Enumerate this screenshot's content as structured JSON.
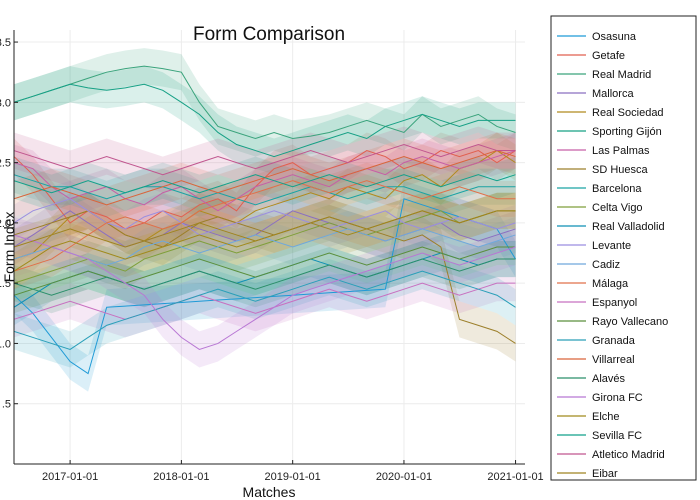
{
  "chart_data": {
    "type": "line",
    "title": "Form Comparison",
    "xlabel": "Matches",
    "ylabel": "Form Index",
    "x_ticks": [
      "2017-01-01",
      "2018-01-01",
      "2019-01-01",
      "2020-01-01",
      "2021-01-01"
    ],
    "x_range": [
      "2016-07-01",
      "2021-02-01"
    ],
    "y_ticks": [
      ".5",
      "1.0",
      "1.5",
      "2.0",
      "2.5",
      "3.0",
      "3.5"
    ],
    "y_tick_values": [
      0.5,
      1.0,
      1.5,
      2.0,
      2.5,
      3.0,
      3.5
    ],
    "ylim": [
      0.0,
      3.6
    ],
    "grid": true,
    "legend_position": "outside-right",
    "band_type": "shaded confidence band",
    "x_dates": [
      "2016-07-01",
      "2016-09-01",
      "2016-11-01",
      "2017-01-01",
      "2017-03-01",
      "2017-05-01",
      "2017-07-01",
      "2017-09-01",
      "2017-11-01",
      "2018-01-01",
      "2018-03-01",
      "2018-05-01",
      "2018-07-01",
      "2018-09-01",
      "2018-11-01",
      "2019-01-01",
      "2019-03-01",
      "2019-05-01",
      "2019-07-01",
      "2019-09-01",
      "2019-11-01",
      "2020-01-01",
      "2020-03-01",
      "2020-05-01",
      "2020-07-01",
      "2020-09-01",
      "2020-11-01",
      "2021-01-01"
    ],
    "series": [
      {
        "name": "Osasuna",
        "color": "#1f9ad6",
        "values": [
          1.4,
          1.25,
          1.05,
          0.85,
          0.75,
          1.3,
          1.31,
          1.32,
          1.33,
          1.34,
          1.35,
          1.36,
          1.37,
          1.38,
          1.39,
          1.4,
          1.41,
          1.42,
          1.43,
          1.44,
          1.45,
          2.2,
          2.15,
          2.1,
          2.05,
          2.0,
          1.95,
          1.7
        ]
      },
      {
        "name": "Getafe",
        "color": "#e15f4f",
        "values": [
          2.55,
          2.4,
          2.2,
          2.0,
          2.1,
          2.05,
          1.95,
          2.0,
          2.1,
          2.05,
          2.15,
          2.2,
          2.1,
          2.3,
          2.45,
          2.5,
          2.4,
          2.45,
          2.5,
          2.6,
          2.55,
          2.45,
          2.5,
          2.6,
          2.55,
          2.6,
          2.5,
          2.6
        ]
      },
      {
        "name": "Real Madrid",
        "color": "#3aa37c",
        "values": [
          3.0,
          3.05,
          3.1,
          3.15,
          3.2,
          3.25,
          3.28,
          3.3,
          3.28,
          3.25,
          3.0,
          2.8,
          2.75,
          2.7,
          2.75,
          2.7,
          2.72,
          2.75,
          2.8,
          2.85,
          2.8,
          2.75,
          2.9,
          2.8,
          2.85,
          2.9,
          2.8,
          2.75
        ]
      },
      {
        "name": "Mallorca",
        "color": "#8b6fc1",
        "values": [
          1.8,
          1.9,
          2.0,
          2.1,
          2.0,
          1.9,
          1.8,
          1.85,
          1.9,
          2.0,
          1.95,
          1.9,
          1.85,
          1.9,
          2.0,
          2.1,
          2.05,
          2.0,
          1.95,
          1.9,
          1.85,
          1.9,
          1.95,
          2.0,
          1.9,
          1.85,
          1.9,
          1.95
        ]
      },
      {
        "name": "Real Sociedad",
        "color": "#b08a1d",
        "values": [
          1.7,
          1.75,
          1.9,
          2.05,
          2.1,
          2.0,
          1.9,
          1.85,
          1.95,
          2.0,
          2.1,
          2.05,
          2.0,
          2.1,
          2.15,
          2.2,
          2.25,
          2.2,
          2.3,
          2.25,
          2.2,
          2.35,
          2.4,
          2.3,
          2.45,
          2.5,
          2.6,
          2.5
        ]
      },
      {
        "name": "Sporting Gijón",
        "color": "#16a085",
        "values": [
          3.0,
          3.05,
          3.1,
          3.15,
          3.12,
          3.1,
          3.12,
          3.15,
          3.1,
          3.0,
          2.9,
          2.75,
          2.65,
          2.6,
          2.55,
          2.6,
          2.65,
          2.7,
          2.75,
          2.7,
          2.8,
          2.85,
          2.9,
          2.85,
          2.8,
          2.85,
          2.85,
          2.85
        ]
      },
      {
        "name": "Las Palmas",
        "color": "#c65fa6",
        "values": [
          2.5,
          2.45,
          2.3,
          2.2,
          2.25,
          2.3,
          2.2,
          2.15,
          2.25,
          2.3,
          2.2,
          2.1,
          2.2,
          2.3,
          2.35,
          2.4,
          2.35,
          2.3,
          2.4,
          2.45,
          2.4,
          2.5,
          2.55,
          2.5,
          2.45,
          2.5,
          2.55,
          2.6
        ]
      },
      {
        "name": "SD Huesca",
        "color": "#9c7f2a",
        "values": [
          1.9,
          1.95,
          2.0,
          2.05,
          2.1,
          2.0,
          1.9,
          1.85,
          1.8,
          1.9,
          2.0,
          2.05,
          2.0,
          1.95,
          1.9,
          1.95,
          2.0,
          2.05,
          2.0,
          1.95,
          1.9,
          1.85,
          1.9,
          1.8,
          1.2,
          1.15,
          1.1,
          1.0
        ]
      },
      {
        "name": "Barcelona",
        "color": "#1aa3a3",
        "values": [
          2.4,
          2.35,
          2.3,
          2.3,
          2.25,
          2.2,
          2.25,
          2.3,
          2.3,
          2.25,
          2.2,
          2.25,
          2.2,
          2.15,
          2.2,
          2.25,
          2.3,
          2.25,
          2.2,
          2.25,
          2.3,
          2.3,
          2.25,
          2.2,
          2.25,
          2.3,
          2.3,
          2.3
        ]
      },
      {
        "name": "Celta Vigo",
        "color": "#7f9f3a",
        "values": [
          1.5,
          1.55,
          1.6,
          1.65,
          1.7,
          1.65,
          1.6,
          1.7,
          1.75,
          1.8,
          1.85,
          1.8,
          1.75,
          1.8,
          1.85,
          1.9,
          1.95,
          2.0,
          1.95,
          1.9,
          1.95,
          2.0,
          2.05,
          2.1,
          2.0,
          2.05,
          2.1,
          2.1
        ]
      },
      {
        "name": "Real Valladolid",
        "color": "#0f8fb5",
        "values": [
          1.3,
          1.4,
          1.5,
          1.55,
          1.6,
          1.55,
          1.5,
          1.45,
          1.5,
          1.55,
          1.6,
          1.55,
          1.5,
          1.55,
          1.6,
          1.65,
          1.7,
          1.65,
          1.6,
          1.55,
          1.6,
          1.65,
          1.7,
          1.75,
          1.7,
          1.65,
          1.7,
          1.7
        ]
      },
      {
        "name": "Levante",
        "color": "#9b8ee0",
        "values": [
          2.0,
          2.1,
          2.15,
          2.2,
          2.1,
          2.0,
          1.95,
          2.05,
          2.1,
          2.0,
          1.9,
          1.95,
          2.0,
          2.05,
          2.1,
          2.05,
          2.0,
          1.95,
          2.0,
          2.05,
          2.1,
          2.0,
          1.95,
          2.0,
          2.05,
          2.0,
          1.95,
          2.0
        ]
      },
      {
        "name": "Cadiz",
        "color": "#6fa8dc",
        "values": [
          1.7,
          1.75,
          1.8,
          1.75,
          1.7,
          1.65,
          1.7,
          1.8,
          1.85,
          1.8,
          1.75,
          1.8,
          1.85,
          1.9,
          1.85,
          1.8,
          1.85,
          1.9,
          1.95,
          1.9,
          1.85,
          1.9,
          1.95,
          1.9,
          1.85,
          1.8,
          1.85,
          1.9
        ]
      },
      {
        "name": "Málaga",
        "color": "#e0704a",
        "values": [
          1.6,
          1.65,
          1.7,
          1.8,
          1.9,
          2.0,
          2.05,
          2.0,
          1.95,
          2.0,
          2.1,
          2.15,
          2.2,
          2.25,
          2.3,
          2.35,
          2.3,
          2.25,
          2.3,
          2.35,
          2.3,
          2.25,
          2.2,
          2.25,
          2.3,
          2.25,
          2.2,
          2.2
        ]
      },
      {
        "name": "Espanyol",
        "color": "#c870c0",
        "values": [
          1.2,
          1.25,
          1.3,
          1.35,
          1.3,
          1.25,
          1.2,
          1.25,
          1.3,
          1.35,
          1.4,
          1.35,
          1.3,
          1.25,
          1.3,
          1.35,
          1.4,
          1.45,
          1.4,
          1.35,
          1.4,
          1.45,
          1.5,
          1.45,
          1.4,
          1.45,
          1.5,
          1.5
        ]
      },
      {
        "name": "Rayo Vallecano",
        "color": "#5a8f3c",
        "values": [
          1.4,
          1.45,
          1.5,
          1.55,
          1.6,
          1.55,
          1.5,
          1.55,
          1.6,
          1.65,
          1.7,
          1.65,
          1.6,
          1.55,
          1.6,
          1.65,
          1.7,
          1.75,
          1.7,
          1.65,
          1.7,
          1.75,
          1.8,
          1.75,
          1.7,
          1.75,
          1.8,
          1.8
        ]
      },
      {
        "name": "Granada",
        "color": "#2a9fb8",
        "values": [
          1.1,
          1.05,
          1.0,
          0.95,
          1.05,
          1.15,
          1.2,
          1.25,
          1.3,
          1.35,
          1.4,
          1.45,
          1.4,
          1.35,
          1.4,
          1.45,
          1.5,
          1.55,
          1.5,
          1.45,
          1.5,
          1.55,
          1.6,
          1.55,
          1.5,
          1.45,
          1.4,
          1.3
        ]
      },
      {
        "name": "Villarreal",
        "color": "#d9653b",
        "values": [
          2.2,
          2.25,
          2.3,
          2.25,
          2.2,
          2.15,
          2.2,
          2.25,
          2.3,
          2.35,
          2.3,
          2.25,
          2.3,
          2.35,
          2.4,
          2.45,
          2.4,
          2.35,
          2.4,
          2.45,
          2.5,
          2.55,
          2.5,
          2.45,
          2.5,
          2.55,
          2.6,
          2.55
        ]
      },
      {
        "name": "Alavés",
        "color": "#2b8f6a",
        "values": [
          1.5,
          1.45,
          1.4,
          1.45,
          1.5,
          1.55,
          1.5,
          1.45,
          1.5,
          1.55,
          1.6,
          1.55,
          1.5,
          1.45,
          1.5,
          1.55,
          1.6,
          1.65,
          1.6,
          1.55,
          1.6,
          1.65,
          1.7,
          1.65,
          1.6,
          1.65,
          1.7,
          1.7
        ]
      },
      {
        "name": "Girona FC",
        "color": "#b877d4",
        "values": [
          1.9,
          1.85,
          1.8,
          1.75,
          1.7,
          1.6,
          1.5,
          1.4,
          1.2,
          1.05,
          0.95,
          1.0,
          1.1,
          1.2,
          1.3,
          1.4,
          1.45,
          1.5,
          1.55,
          1.6,
          1.65,
          1.7,
          1.75,
          1.7,
          1.65,
          1.7,
          1.75,
          1.8
        ]
      },
      {
        "name": "Elche",
        "color": "#a08a1c",
        "values": [
          1.6,
          1.7,
          1.8,
          1.85,
          1.8,
          1.75,
          1.7,
          1.75,
          1.8,
          1.85,
          1.9,
          1.85,
          1.8,
          1.85,
          1.9,
          1.95,
          2.0,
          1.95,
          1.9,
          1.95,
          2.0,
          2.05,
          2.1,
          2.05,
          2.0,
          2.05,
          2.1,
          2.1
        ]
      },
      {
        "name": "Sevilla FC",
        "color": "#12a18a",
        "values": [
          2.35,
          2.3,
          2.25,
          2.3,
          2.35,
          2.3,
          2.25,
          2.3,
          2.35,
          2.3,
          2.25,
          2.3,
          2.35,
          2.4,
          2.35,
          2.3,
          2.35,
          2.4,
          2.35,
          2.3,
          2.35,
          2.4,
          2.35,
          2.3,
          2.35,
          2.4,
          2.35,
          2.4
        ]
      },
      {
        "name": "Atletico Madrid",
        "color": "#c0568f",
        "values": [
          2.6,
          2.55,
          2.5,
          2.45,
          2.5,
          2.55,
          2.5,
          2.45,
          2.4,
          2.45,
          2.5,
          2.55,
          2.5,
          2.45,
          2.5,
          2.55,
          2.6,
          2.55,
          2.5,
          2.55,
          2.6,
          2.65,
          2.6,
          2.55,
          2.6,
          2.65,
          2.6,
          2.6
        ]
      },
      {
        "name": "Eibar",
        "color": "#9f8420",
        "values": [
          1.8,
          1.85,
          1.9,
          1.95,
          1.9,
          1.85,
          1.8,
          1.85,
          1.9,
          1.95,
          2.0,
          1.95,
          1.9,
          1.85,
          1.9,
          1.95,
          2.0,
          2.05,
          2.0,
          1.95,
          2.0,
          2.05,
          2.1,
          2.05,
          2.0,
          2.05,
          2.1,
          2.1
        ]
      }
    ]
  }
}
